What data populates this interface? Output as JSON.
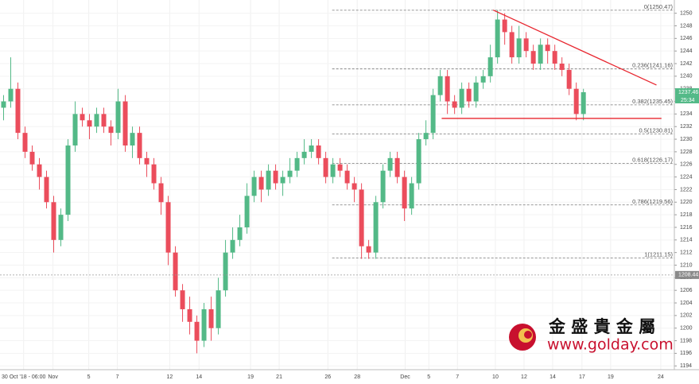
{
  "chart_data": {
    "type": "candlestick",
    "ylim": [
      1193.4,
      1252.1
    ],
    "yticks": [
      1194,
      1196,
      1198,
      1200,
      1202,
      1204,
      1206,
      1208,
      1210,
      1212,
      1214,
      1216,
      1218,
      1220,
      1222,
      1224,
      1226,
      1228,
      1230,
      1232,
      1234,
      1236,
      1238,
      1240,
      1242,
      1244,
      1246,
      1248,
      1250
    ],
    "xlim": [
      0,
      94.2
    ],
    "xticks": [
      {
        "value": 3.3,
        "label": "30 Oct '18 - 06:00"
      },
      {
        "value": 7.4,
        "label": "Nov"
      },
      {
        "value": 12.4,
        "label": "5"
      },
      {
        "value": 16.4,
        "label": "7"
      },
      {
        "value": 23.7,
        "label": "12"
      },
      {
        "value": 27.8,
        "label": "14"
      },
      {
        "value": 35,
        "label": "19"
      },
      {
        "value": 39,
        "label": "21"
      },
      {
        "value": 45.8,
        "label": "26"
      },
      {
        "value": 49.9,
        "label": "28"
      },
      {
        "value": 56.6,
        "label": "Dec"
      },
      {
        "value": 59.9,
        "label": "5"
      },
      {
        "value": 63.9,
        "label": "7"
      },
      {
        "value": 69.2,
        "label": "10"
      },
      {
        "value": 73.2,
        "label": "12"
      },
      {
        "value": 77.2,
        "label": "14"
      },
      {
        "value": 81.3,
        "label": "17"
      },
      {
        "value": 85.3,
        "label": "19"
      },
      {
        "value": 92.3,
        "label": "24"
      }
    ],
    "grid": true,
    "up_color": "#53b987",
    "down_color": "#eb4d5c",
    "open": [
      1235,
      1236,
      1238,
      1231,
      1228,
      1226,
      1224,
      1220,
      1214,
      1218,
      1229,
      1234,
      1233,
      1232,
      1234,
      1232,
      1231,
      1236,
      1229,
      1231,
      1227,
      1226,
      1223,
      1220,
      1212,
      1206,
      1203,
      1201,
      1198,
      1203,
      1200,
      1206,
      1212,
      1214,
      1216,
      1221,
      1224,
      1222,
      1225,
      1223,
      1224,
      1225,
      1227,
      1228,
      1229,
      1227,
      1224,
      1226,
      1225,
      1223,
      1222,
      1213,
      1212,
      1220,
      1225,
      1227,
      1224,
      1219,
      1223,
      1230,
      1231,
      1237,
      1240,
      1236,
      1235,
      1238,
      1236,
      1239,
      1240,
      1243,
      1249,
      1247,
      1243,
      1246,
      1244,
      1242,
      1245,
      1244,
      1242,
      1241,
      1238,
      1234
    ],
    "high": [
      1237,
      1243,
      1239,
      1232,
      1229,
      1227,
      1225,
      1221,
      1219,
      1230,
      1236,
      1235,
      1234,
      1235,
      1235,
      1233,
      1238,
      1237,
      1232,
      1232,
      1228,
      1227,
      1224,
      1221,
      1213,
      1207,
      1205,
      1202,
      1204,
      1205,
      1208,
      1214,
      1216,
      1218,
      1223,
      1225,
      1225,
      1226,
      1226,
      1225,
      1227,
      1228,
      1230,
      1230,
      1230,
      1228,
      1227,
      1227,
      1226,
      1224,
      1223,
      1214,
      1221,
      1226,
      1228,
      1228,
      1225,
      1224,
      1231,
      1233,
      1238,
      1241,
      1241,
      1237,
      1239,
      1239,
      1240,
      1241,
      1245,
      1250.5,
      1250,
      1248,
      1248,
      1247,
      1245,
      1246,
      1246,
      1245,
      1243,
      1242,
      1239,
      1238
    ],
    "low": [
      1233,
      1235,
      1230,
      1227,
      1225,
      1222,
      1219,
      1212,
      1213,
      1217,
      1228,
      1232,
      1230,
      1231,
      1231,
      1229,
      1230,
      1228,
      1227,
      1226,
      1224,
      1222,
      1218,
      1210,
      1205,
      1201,
      1199,
      1196,
      1197,
      1198,
      1199,
      1205,
      1211,
      1213,
      1215,
      1220,
      1220,
      1221,
      1222,
      1221,
      1223,
      1224,
      1226,
      1227,
      1226,
      1223,
      1223,
      1224,
      1222,
      1220,
      1211,
      1211,
      1211,
      1219,
      1224,
      1223,
      1217,
      1218,
      1222,
      1229,
      1230,
      1236,
      1234,
      1234,
      1234,
      1235,
      1235,
      1238,
      1239,
      1242,
      1245,
      1242,
      1242,
      1243,
      1241,
      1241,
      1242,
      1241,
      1240,
      1237,
      1233,
      1233
    ],
    "close": [
      1236,
      1238,
      1231,
      1228,
      1226,
      1224,
      1220,
      1214,
      1218,
      1229,
      1234,
      1233,
      1232,
      1234,
      1232,
      1231,
      1236,
      1229,
      1231,
      1227,
      1226,
      1223,
      1220,
      1212,
      1206,
      1203,
      1201,
      1198,
      1203,
      1200,
      1206,
      1212,
      1214,
      1216,
      1221,
      1224,
      1222,
      1225,
      1223,
      1224,
      1225,
      1227,
      1228,
      1229,
      1227,
      1224,
      1226,
      1225,
      1223,
      1222,
      1213,
      1212,
      1220,
      1225,
      1227,
      1224,
      1219,
      1223,
      1230,
      1231,
      1237,
      1240,
      1236,
      1235,
      1238,
      1236,
      1239,
      1240,
      1243,
      1249,
      1247,
      1243,
      1246,
      1244,
      1242,
      1245,
      1244,
      1242,
      1241,
      1238,
      1234,
      1237.46
    ],
    "fib_start": 46.4,
    "fib_levels": [
      {
        "value": 1250.47,
        "label": "0(1250.47)"
      },
      {
        "value": 1241.16,
        "label": "0.236(1241.16)"
      },
      {
        "value": 1235.45,
        "label": "0.382(1235.45)"
      },
      {
        "value": 1230.81,
        "label": "0.5(1230.81)"
      },
      {
        "value": 1226.17,
        "label": "0.618(1226.17)"
      },
      {
        "value": 1219.56,
        "label": "0.786(1219.56)"
      },
      {
        "value": 1211.15,
        "label": "1(1211.15)"
      }
    ],
    "trendlines": [
      {
        "x": [
          68.9,
          91.7
        ],
        "y": [
          1250.5,
          1238.6
        ],
        "color": "#e8262f"
      },
      {
        "x": [
          61.7,
          92.4
        ],
        "y": [
          1233.3,
          1233.3
        ],
        "color": "#e8262f"
      }
    ],
    "price_tags": [
      {
        "value": 1237.46,
        "label": "1237.46",
        "color": "#53b987"
      },
      {
        "value": 1208.44,
        "label": "1208.44",
        "color": "#8a8a8a"
      }
    ],
    "countdown": "25:34",
    "logo": {
      "name": "金 盛 貴 金 屬",
      "url": "www.golday.com"
    }
  }
}
